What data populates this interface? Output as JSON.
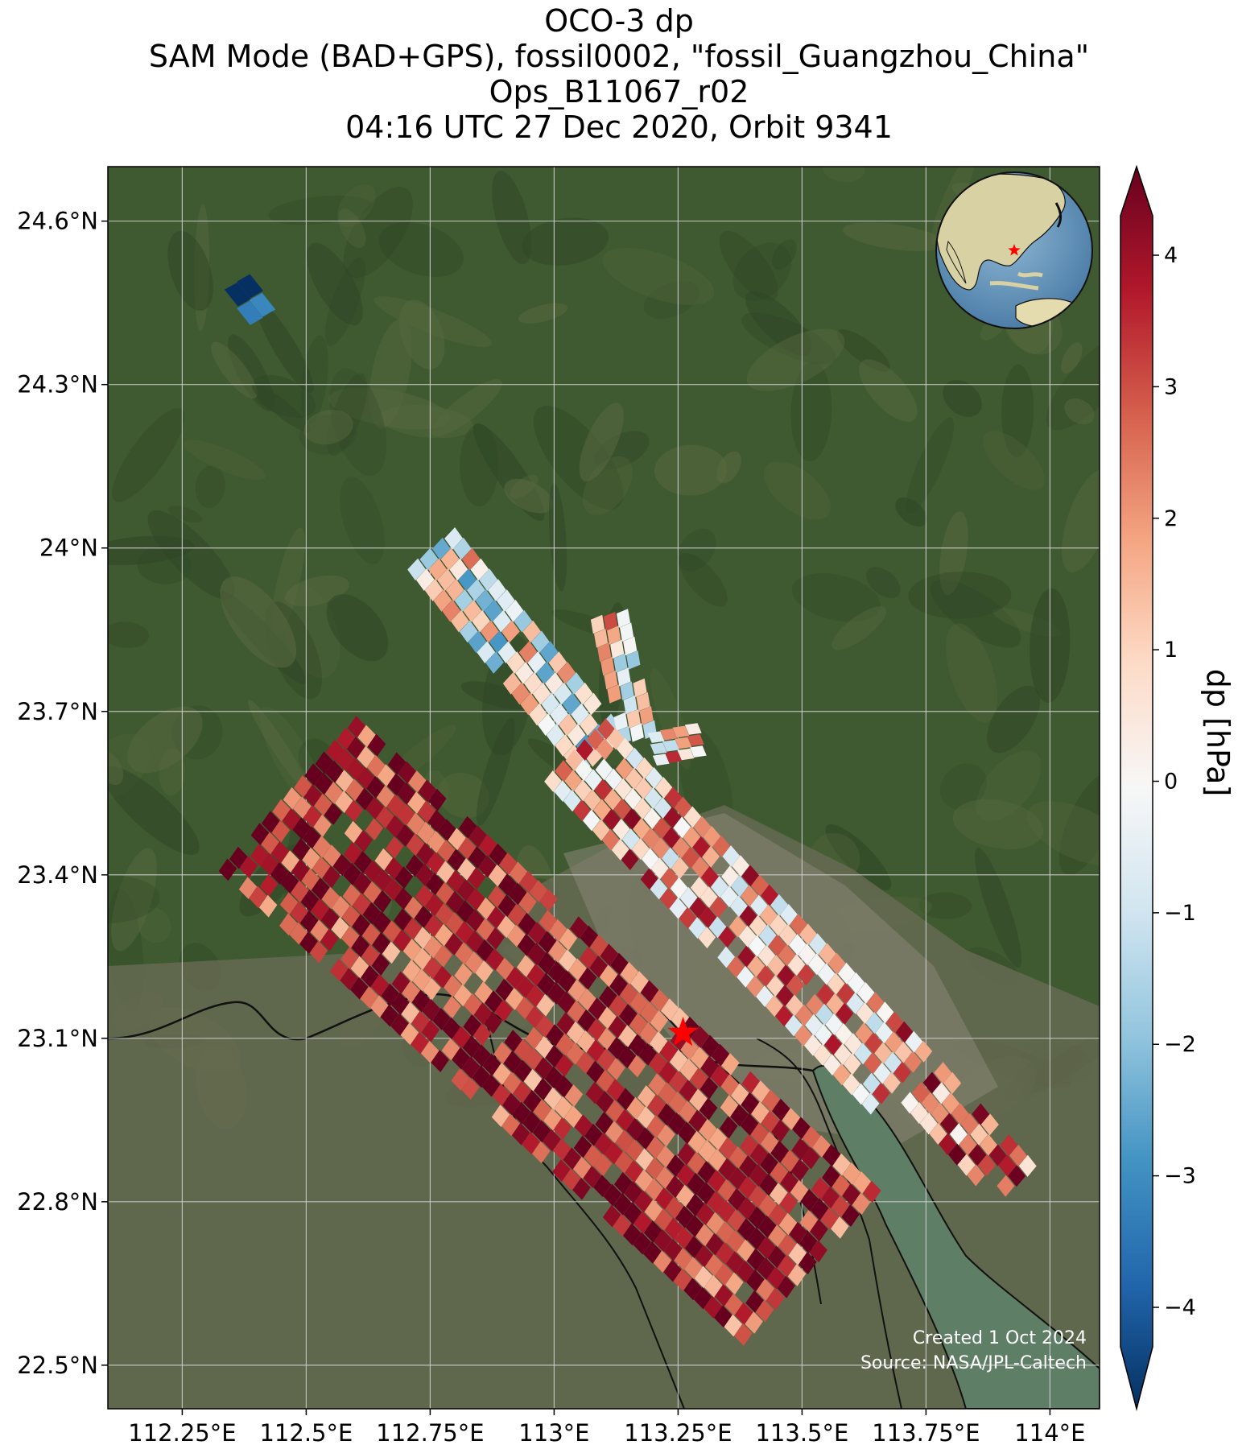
{
  "title": {
    "line1": "OCO-3 dp",
    "line2": "SAM Mode (BAD+GPS), fossil0002, \"fossil_Guangzhou_China\"",
    "line3": "Ops_B11067_r02",
    "line4": "04:16 UTC 27 Dec 2020, Orbit 9341"
  },
  "map": {
    "lon_range": [
      112.1,
      114.1
    ],
    "lat_range": [
      22.42,
      24.7
    ],
    "lat_ticks": [
      {
        "value": 24.6,
        "label": "24.6°N"
      },
      {
        "value": 24.3,
        "label": "24.3°N"
      },
      {
        "value": 24.0,
        "label": "24°N"
      },
      {
        "value": 23.7,
        "label": "23.7°N"
      },
      {
        "value": 23.4,
        "label": "23.4°N"
      },
      {
        "value": 23.1,
        "label": "23.1°N"
      },
      {
        "value": 22.8,
        "label": "22.8°N"
      },
      {
        "value": 22.5,
        "label": "22.5°N"
      }
    ],
    "lon_ticks": [
      {
        "value": 112.25,
        "label": "112.25°E"
      },
      {
        "value": 112.5,
        "label": "112.5°E"
      },
      {
        "value": 112.75,
        "label": "112.75°E"
      },
      {
        "value": 113.0,
        "label": "113°E"
      },
      {
        "value": 113.25,
        "label": "113.25°E"
      },
      {
        "value": 113.5,
        "label": "113.5°E"
      },
      {
        "value": 113.75,
        "label": "113.75°E"
      },
      {
        "value": 114.0,
        "label": "114°E"
      }
    ],
    "target": {
      "name": "fossil_Guangzhou_China",
      "lon": 113.26,
      "lat": 23.11,
      "marker_color": "#ff0000"
    },
    "credit_line1": "Created 1 Oct 2024",
    "credit_line2": "Source: NASA/JPL-Caltech",
    "colors": {
      "land": "#3d5530",
      "grid": "#d0d0d0",
      "water": "#55704f"
    }
  },
  "colorbar": {
    "label": "dp [hPa]",
    "range": [
      -4.3,
      4.3
    ],
    "extend": "both",
    "colormap": "RdBu_r",
    "ticks": [
      {
        "value": 4,
        "label": "4"
      },
      {
        "value": 3,
        "label": "3"
      },
      {
        "value": 2,
        "label": "2"
      },
      {
        "value": 1,
        "label": "1"
      },
      {
        "value": 0,
        "label": "0"
      },
      {
        "value": -1,
        "label": "−1"
      },
      {
        "value": -2,
        "label": "−2"
      },
      {
        "value": -3,
        "label": "−3"
      },
      {
        "value": -4,
        "label": "−4"
      }
    ],
    "stops": [
      "#053061",
      "#2166ac",
      "#4393c3",
      "#92c5de",
      "#d1e5f0",
      "#f7f7f7",
      "#fddbc7",
      "#f4a582",
      "#d6604d",
      "#b2182b",
      "#67001f"
    ]
  },
  "chart_data": {
    "type": "heatmap",
    "variable": "dp",
    "unit": "hPa",
    "swaths": [
      {
        "name": "swath-a",
        "start": [
          112.36,
          24.44
        ],
        "end": [
          112.41,
          24.47
        ],
        "mean_dp": -3.5,
        "spread": 1.0
      },
      {
        "name": "swath-b",
        "start": [
          112.75,
          24.0
        ],
        "end": [
          113.1,
          23.62
        ],
        "mean_dp": 0.0,
        "spread": 1.6
      },
      {
        "name": "swath-c",
        "start": [
          113.11,
          23.88
        ],
        "end": [
          113.17,
          23.65
        ],
        "mean_dp": 0.6,
        "spread": 1.4
      },
      {
        "name": "swath-d",
        "start": [
          113.3,
          23.65
        ],
        "end": [
          113.2,
          23.63
        ],
        "mean_dp": 1.2,
        "spread": 1.5
      },
      {
        "name": "swath-e",
        "start": [
          113.04,
          23.63
        ],
        "end": [
          113.7,
          23.02
        ],
        "mean_dp": 1.4,
        "spread": 1.6
      },
      {
        "name": "swath-f",
        "start": [
          113.74,
          23.02
        ],
        "end": [
          113.93,
          22.83
        ],
        "mean_dp": 2.2,
        "spread": 1.4
      },
      {
        "name": "swath-g",
        "start": [
          112.46,
          23.55
        ],
        "end": [
          113.52,
          22.68
        ],
        "mean_dp": 3.3,
        "spread": 1.3
      }
    ]
  }
}
